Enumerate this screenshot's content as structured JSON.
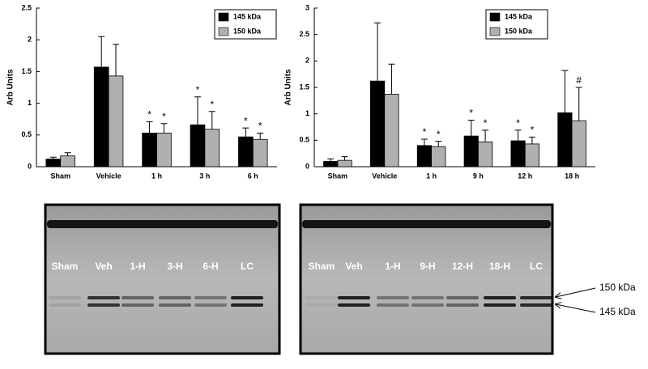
{
  "chart_data": [
    {
      "type": "bar",
      "y_label": "Arb Units",
      "categories": [
        "Sham",
        "Vehicle",
        "1 h",
        "3 h",
        "6 h"
      ],
      "series": [
        {
          "name": "145 kDa",
          "color": "#000000",
          "values": [
            0.12,
            1.57,
            0.53,
            0.66,
            0.47
          ],
          "errors": [
            0.03,
            0.48,
            0.18,
            0.44,
            0.14
          ],
          "annotations": [
            null,
            null,
            "*",
            "*",
            "*"
          ]
        },
        {
          "name": "150 kDa",
          "color": "#b0b0b0",
          "values": [
            0.17,
            1.43,
            0.53,
            0.59,
            0.43
          ],
          "errors": [
            0.05,
            0.5,
            0.15,
            0.28,
            0.1
          ],
          "annotations": [
            null,
            null,
            "*",
            "*",
            "*"
          ]
        }
      ],
      "ylim": [
        0,
        2.5
      ],
      "yticks": [
        0,
        0.5,
        1,
        1.5,
        2,
        2.5
      ]
    },
    {
      "type": "bar",
      "y_label": "Arb Units",
      "categories": [
        "Sham",
        "Vehicle",
        "1 h",
        "9 h",
        "12 h",
        "18 h"
      ],
      "series": [
        {
          "name": "145 kDa",
          "color": "#000000",
          "values": [
            0.1,
            1.62,
            0.4,
            0.58,
            0.49,
            1.02
          ],
          "errors": [
            0.05,
            1.1,
            0.12,
            0.3,
            0.2,
            0.8
          ],
          "annotations": [
            null,
            null,
            "*",
            "*",
            "*",
            null
          ]
        },
        {
          "name": "150 kDa",
          "color": "#b0b0b0",
          "values": [
            0.12,
            1.37,
            0.38,
            0.47,
            0.43,
            0.87
          ],
          "errors": [
            0.07,
            0.57,
            0.1,
            0.22,
            0.13,
            0.63
          ],
          "annotations": [
            null,
            null,
            "*",
            "*",
            "*",
            "#"
          ]
        }
      ],
      "ylim": [
        0,
        3
      ],
      "yticks": [
        0,
        0.5,
        1,
        1.5,
        2,
        2.5,
        3
      ]
    }
  ],
  "gels": [
    {
      "lanes": [
        "Sham",
        "Veh",
        "1-H",
        "3-H",
        "6-H",
        "LC"
      ]
    },
    {
      "lanes": [
        "Sham",
        "Veh",
        "1-H",
        "9-H",
        "12-H",
        "18-H",
        "LC"
      ]
    }
  ],
  "markers": [
    "150 kDa",
    "145 kDa"
  ]
}
